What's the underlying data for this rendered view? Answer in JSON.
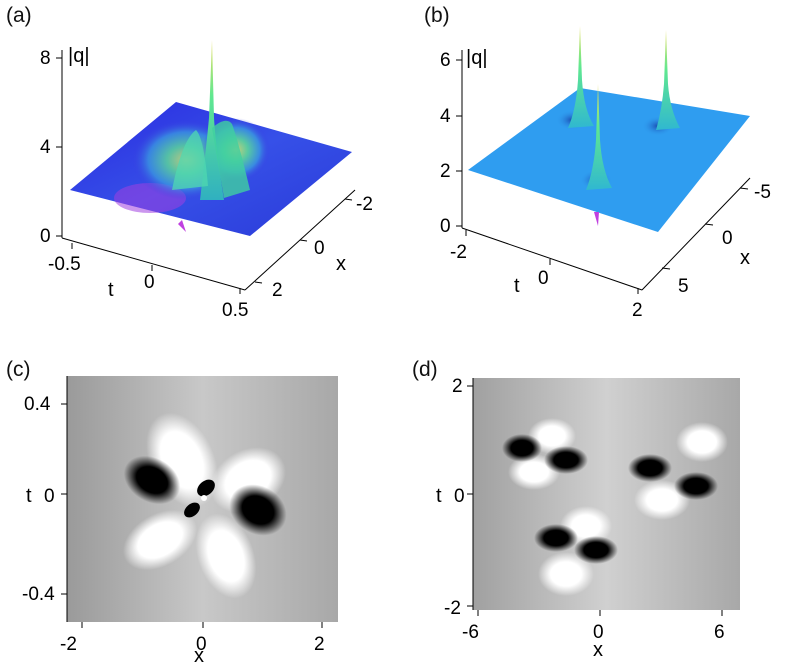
{
  "panels": {
    "a": {
      "label": "(a)",
      "zlabel": "|q|",
      "zticks": [
        "0",
        "4",
        "8"
      ],
      "tlabel": "t",
      "tticks": [
        "-0.5",
        "0",
        "0.5"
      ],
      "xlabel": "x",
      "xticks": [
        "-2",
        "0",
        "2"
      ],
      "colors": {
        "surface": "#3a3ae0",
        "peak": "#f0e040",
        "mid": "#50e090",
        "hole": "#c040e0"
      }
    },
    "b": {
      "label": "(b)",
      "zlabel": "|q|",
      "zticks": [
        "0",
        "2",
        "4",
        "6"
      ],
      "tlabel": "t",
      "tticks": [
        "-2",
        "0",
        "2"
      ],
      "xlabel": "x",
      "xticks": [
        "-5",
        "0",
        "5"
      ],
      "colors": {
        "surface": "#2f9df0",
        "peak": "#f0e040",
        "mid": "#40e090"
      }
    },
    "c": {
      "label": "(c)",
      "ylabel": "t",
      "yticks": [
        "0.4",
        "0",
        "-0.4"
      ],
      "xlabel": "x",
      "xticks": [
        "-2",
        "0",
        "2"
      ]
    },
    "d": {
      "label": "(d)",
      "ylabel": "t",
      "yticks": [
        "2",
        "0",
        "-2"
      ],
      "xlabel": "x",
      "xticks": [
        "-6",
        "0",
        "6"
      ]
    }
  }
}
